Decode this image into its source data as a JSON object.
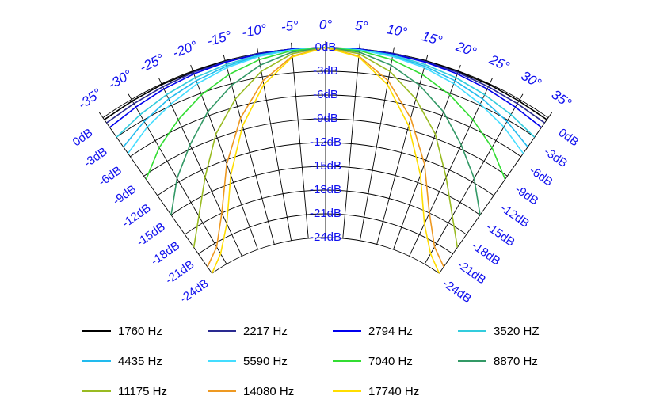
{
  "chart_data": {
    "type": "polar-line",
    "title": "",
    "angular_range": [
      -35,
      35
    ],
    "angle_ticks": [
      -35,
      -30,
      -25,
      -20,
      -15,
      -10,
      -5,
      0,
      5,
      10,
      15,
      20,
      25,
      30,
      35
    ],
    "angle_tick_labels": [
      "-35°",
      "-30°",
      "-25°",
      "-20°",
      "-15°",
      "-10°",
      "-5°",
      "0°",
      "5°",
      "10°",
      "15°",
      "20°",
      "25°",
      "30°",
      "35°"
    ],
    "radial_range": [
      -24,
      0
    ],
    "radial_ticks": [
      0,
      -3,
      -6,
      -9,
      -12,
      -15,
      -18,
      -21,
      -24
    ],
    "radial_tick_labels": [
      "0dB",
      "-3dB",
      "-6dB",
      "-9dB",
      "-12dB",
      "-15dB",
      "-18dB",
      "-21dB",
      "-24dB"
    ],
    "grid": true,
    "legend_position": "bottom",
    "angles": [
      -35,
      -30,
      -25,
      -20,
      -15,
      -10,
      -5,
      0,
      5,
      10,
      15,
      20,
      25,
      30,
      35
    ],
    "series": [
      {
        "name": "1760 Hz",
        "color": "#000000",
        "values": [
          -0.3,
          -0.2,
          -0.1,
          -0.1,
          0,
          0,
          0,
          0,
          0,
          0,
          0,
          -0.1,
          -0.1,
          -0.2,
          -0.3
        ]
      },
      {
        "name": "2217 Hz",
        "color": "#2a2a90",
        "values": [
          -0.8,
          -0.6,
          -0.4,
          -0.2,
          -0.1,
          0,
          0,
          0,
          0,
          0,
          -0.1,
          -0.2,
          -0.4,
          -0.6,
          -0.8
        ]
      },
      {
        "name": "2794 Hz",
        "color": "#0000ee",
        "values": [
          -1.5,
          -1.1,
          -0.7,
          -0.4,
          -0.2,
          -0.1,
          0,
          0,
          0,
          -0.1,
          -0.2,
          -0.4,
          -0.7,
          -1.1,
          -1.5
        ]
      },
      {
        "name": "3520 HZ",
        "color": "#33ccdd",
        "values": [
          -3.0,
          -2.2,
          -1.5,
          -0.9,
          -0.5,
          -0.2,
          -0.1,
          0,
          -0.1,
          -0.2,
          -0.5,
          -0.9,
          -1.5,
          -2.2,
          -3.0
        ]
      },
      {
        "name": "4435 Hz",
        "color": "#22bbee",
        "values": [
          -4.5,
          -3.2,
          -2.1,
          -1.3,
          -0.7,
          -0.3,
          -0.1,
          0,
          -0.1,
          -0.3,
          -0.7,
          -1.3,
          -2.1,
          -3.2,
          -4.5
        ]
      },
      {
        "name": "5590 Hz",
        "color": "#44ddff",
        "values": [
          -5.5,
          -4.0,
          -2.8,
          -1.7,
          -0.9,
          -0.4,
          -0.1,
          0,
          -0.1,
          -0.4,
          -0.9,
          -1.7,
          -2.8,
          -4.0,
          -5.5
        ]
      },
      {
        "name": "7040 Hz",
        "color": "#33dd33",
        "values": [
          -9.5,
          -7.0,
          -5.0,
          -3.2,
          -1.8,
          -0.8,
          -0.2,
          0,
          -0.2,
          -0.8,
          -1.8,
          -3.2,
          -5.0,
          -7.0,
          -9.5
        ]
      },
      {
        "name": "8870 Hz",
        "color": "#339966",
        "values": [
          -15.0,
          -11.5,
          -8.5,
          -5.5,
          -3.2,
          -1.5,
          -0.4,
          0,
          -0.4,
          -1.5,
          -3.2,
          -5.5,
          -8.5,
          -11.5,
          -15.0
        ]
      },
      {
        "name": "11175 Hz",
        "color": "#99bb22",
        "values": [
          -20.0,
          -17.0,
          -13.0,
          -8.5,
          -5.0,
          -2.3,
          -0.6,
          0,
          -0.6,
          -2.3,
          -5.0,
          -8.5,
          -13.0,
          -17.0,
          -20.0
        ]
      },
      {
        "name": "14080 Hz",
        "color": "#ee9922",
        "values": [
          -23.0,
          -21.5,
          -18.0,
          -12.5,
          -7.5,
          -3.5,
          -0.9,
          0,
          -0.9,
          -3.5,
          -7.5,
          -12.5,
          -18.0,
          -21.5,
          -23.0
        ]
      },
      {
        "name": "17740 Hz",
        "color": "#ffdd00",
        "values": [
          -24.0,
          -22.5,
          -19.5,
          -14.0,
          -8.5,
          -4.0,
          -1.0,
          0,
          -1.0,
          -4.0,
          -8.5,
          -14.0,
          -19.5,
          -22.5,
          -24.0
        ]
      }
    ]
  }
}
